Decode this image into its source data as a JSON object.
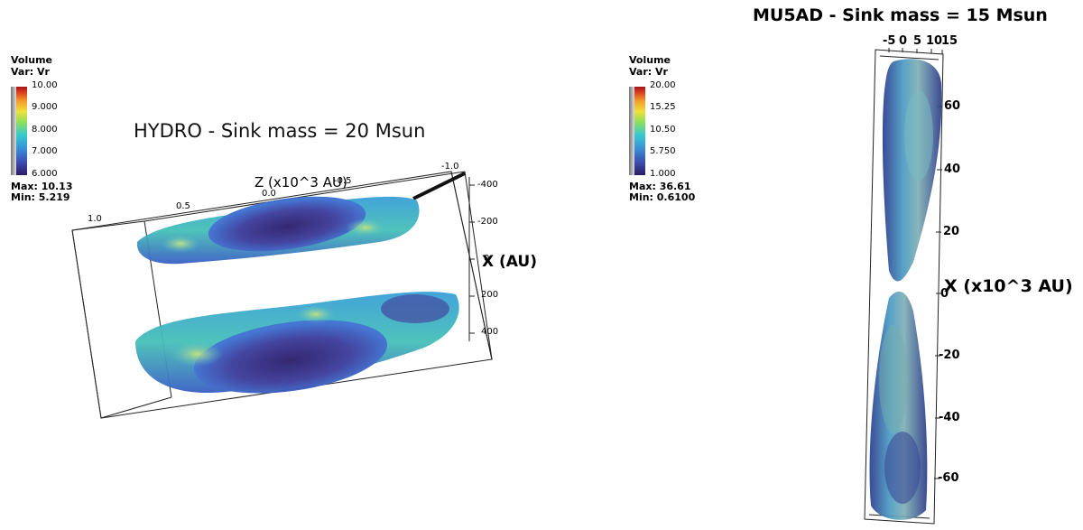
{
  "left_panel": {
    "legend": {
      "title": "Volume",
      "var": "Var: Vr",
      "ticks": [
        "10.00",
        "9.000",
        "8.000",
        "7.000",
        "6.000"
      ],
      "max": "Max: 10.13",
      "min": "Min: 5.219"
    },
    "title": "HYDRO - Sink mass = 20 Msun",
    "z_axis_label": "Z (x10^3 AU)",
    "z_ticks": [
      "1.0",
      "0.5",
      "0.0",
      "-0.5",
      "-1.0"
    ],
    "x_axis_label": "X (AU)",
    "x_ticks": [
      "-400",
      "-200",
      "0",
      "200",
      "400"
    ]
  },
  "right_panel": {
    "legend": {
      "title": "Volume",
      "var": "Var: Vr",
      "ticks": [
        "20.00",
        "15.25",
        "10.50",
        "5.750",
        "1.000"
      ],
      "max": "Max: 36.61",
      "min": "Min: 0.6100"
    },
    "title": "MU5AD - Sink mass = 15 Msun",
    "top_ticks": [
      "-5",
      "0",
      "5",
      "10",
      "15"
    ],
    "x_axis_label": "X (x10^3 AU)",
    "x_ticks": [
      "60",
      "40",
      "20",
      "0",
      "-20",
      "-40",
      "-60"
    ]
  },
  "colors": {
    "deep": "#2a1d6b",
    "blue": "#3c5fc4",
    "cyan": "#37bfd0",
    "green": "#7fd86a",
    "yellow": "#e8d84a"
  }
}
